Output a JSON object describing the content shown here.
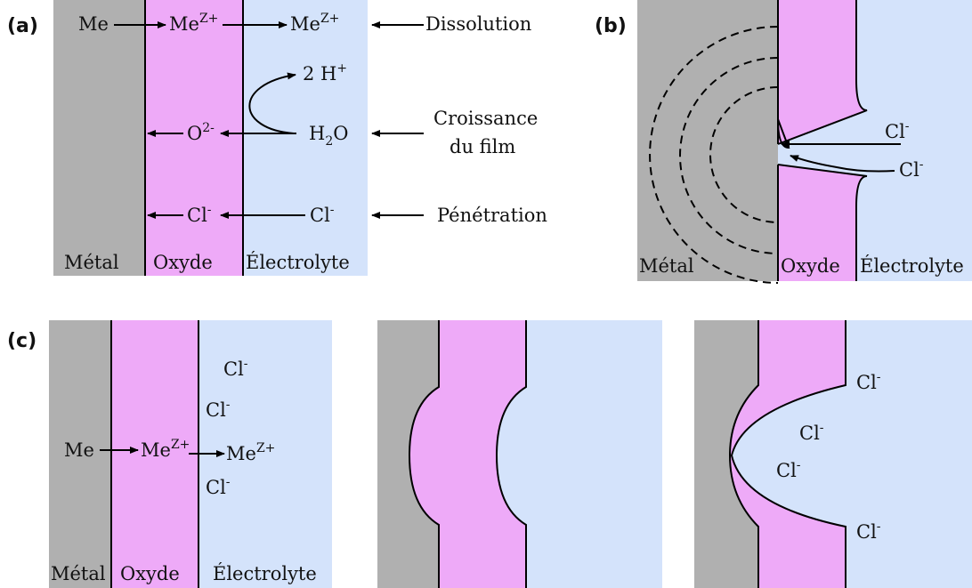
{
  "colors": {
    "metal": "#b0b0b0",
    "oxide": "#eeaaf8",
    "electrolyte": "#d4e3fb",
    "line": "#000000"
  },
  "panel_a": {
    "tag": "(a)",
    "regions": {
      "metal": "Métal",
      "oxide": "Oxyde",
      "electrolyte": "Électrolyte"
    },
    "species": {
      "me": "Me",
      "me_ion_base": "Me",
      "me_ion_charge": "Z+",
      "h_plus": "2 H",
      "h_plus_charge": "+",
      "water_h": "H",
      "water_sub": "2",
      "water_o": "O",
      "oxide_ion_base": "O",
      "oxide_ion_charge": "2-",
      "chloride_base": "Cl",
      "chloride_charge": "-"
    },
    "processes": {
      "dissolution": "Dissolution",
      "growth_line1": "Croissance",
      "growth_line2": "du film",
      "penetration": "Pénétration"
    }
  },
  "panel_b": {
    "tag": "(b)",
    "regions": {
      "metal": "Métal",
      "oxide": "Oxyde",
      "electrolyte": "Électrolyte"
    },
    "chloride_base": "Cl",
    "chloride_charge": "-"
  },
  "panel_c": {
    "tag": "(c)",
    "regions": {
      "metal": "Métal",
      "oxide": "Oxyde",
      "electrolyte": "Électrolyte"
    },
    "me": "Me",
    "me_ion_base": "Me",
    "me_ion_charge": "Z+",
    "chloride_base": "Cl",
    "chloride_charge": "-"
  }
}
